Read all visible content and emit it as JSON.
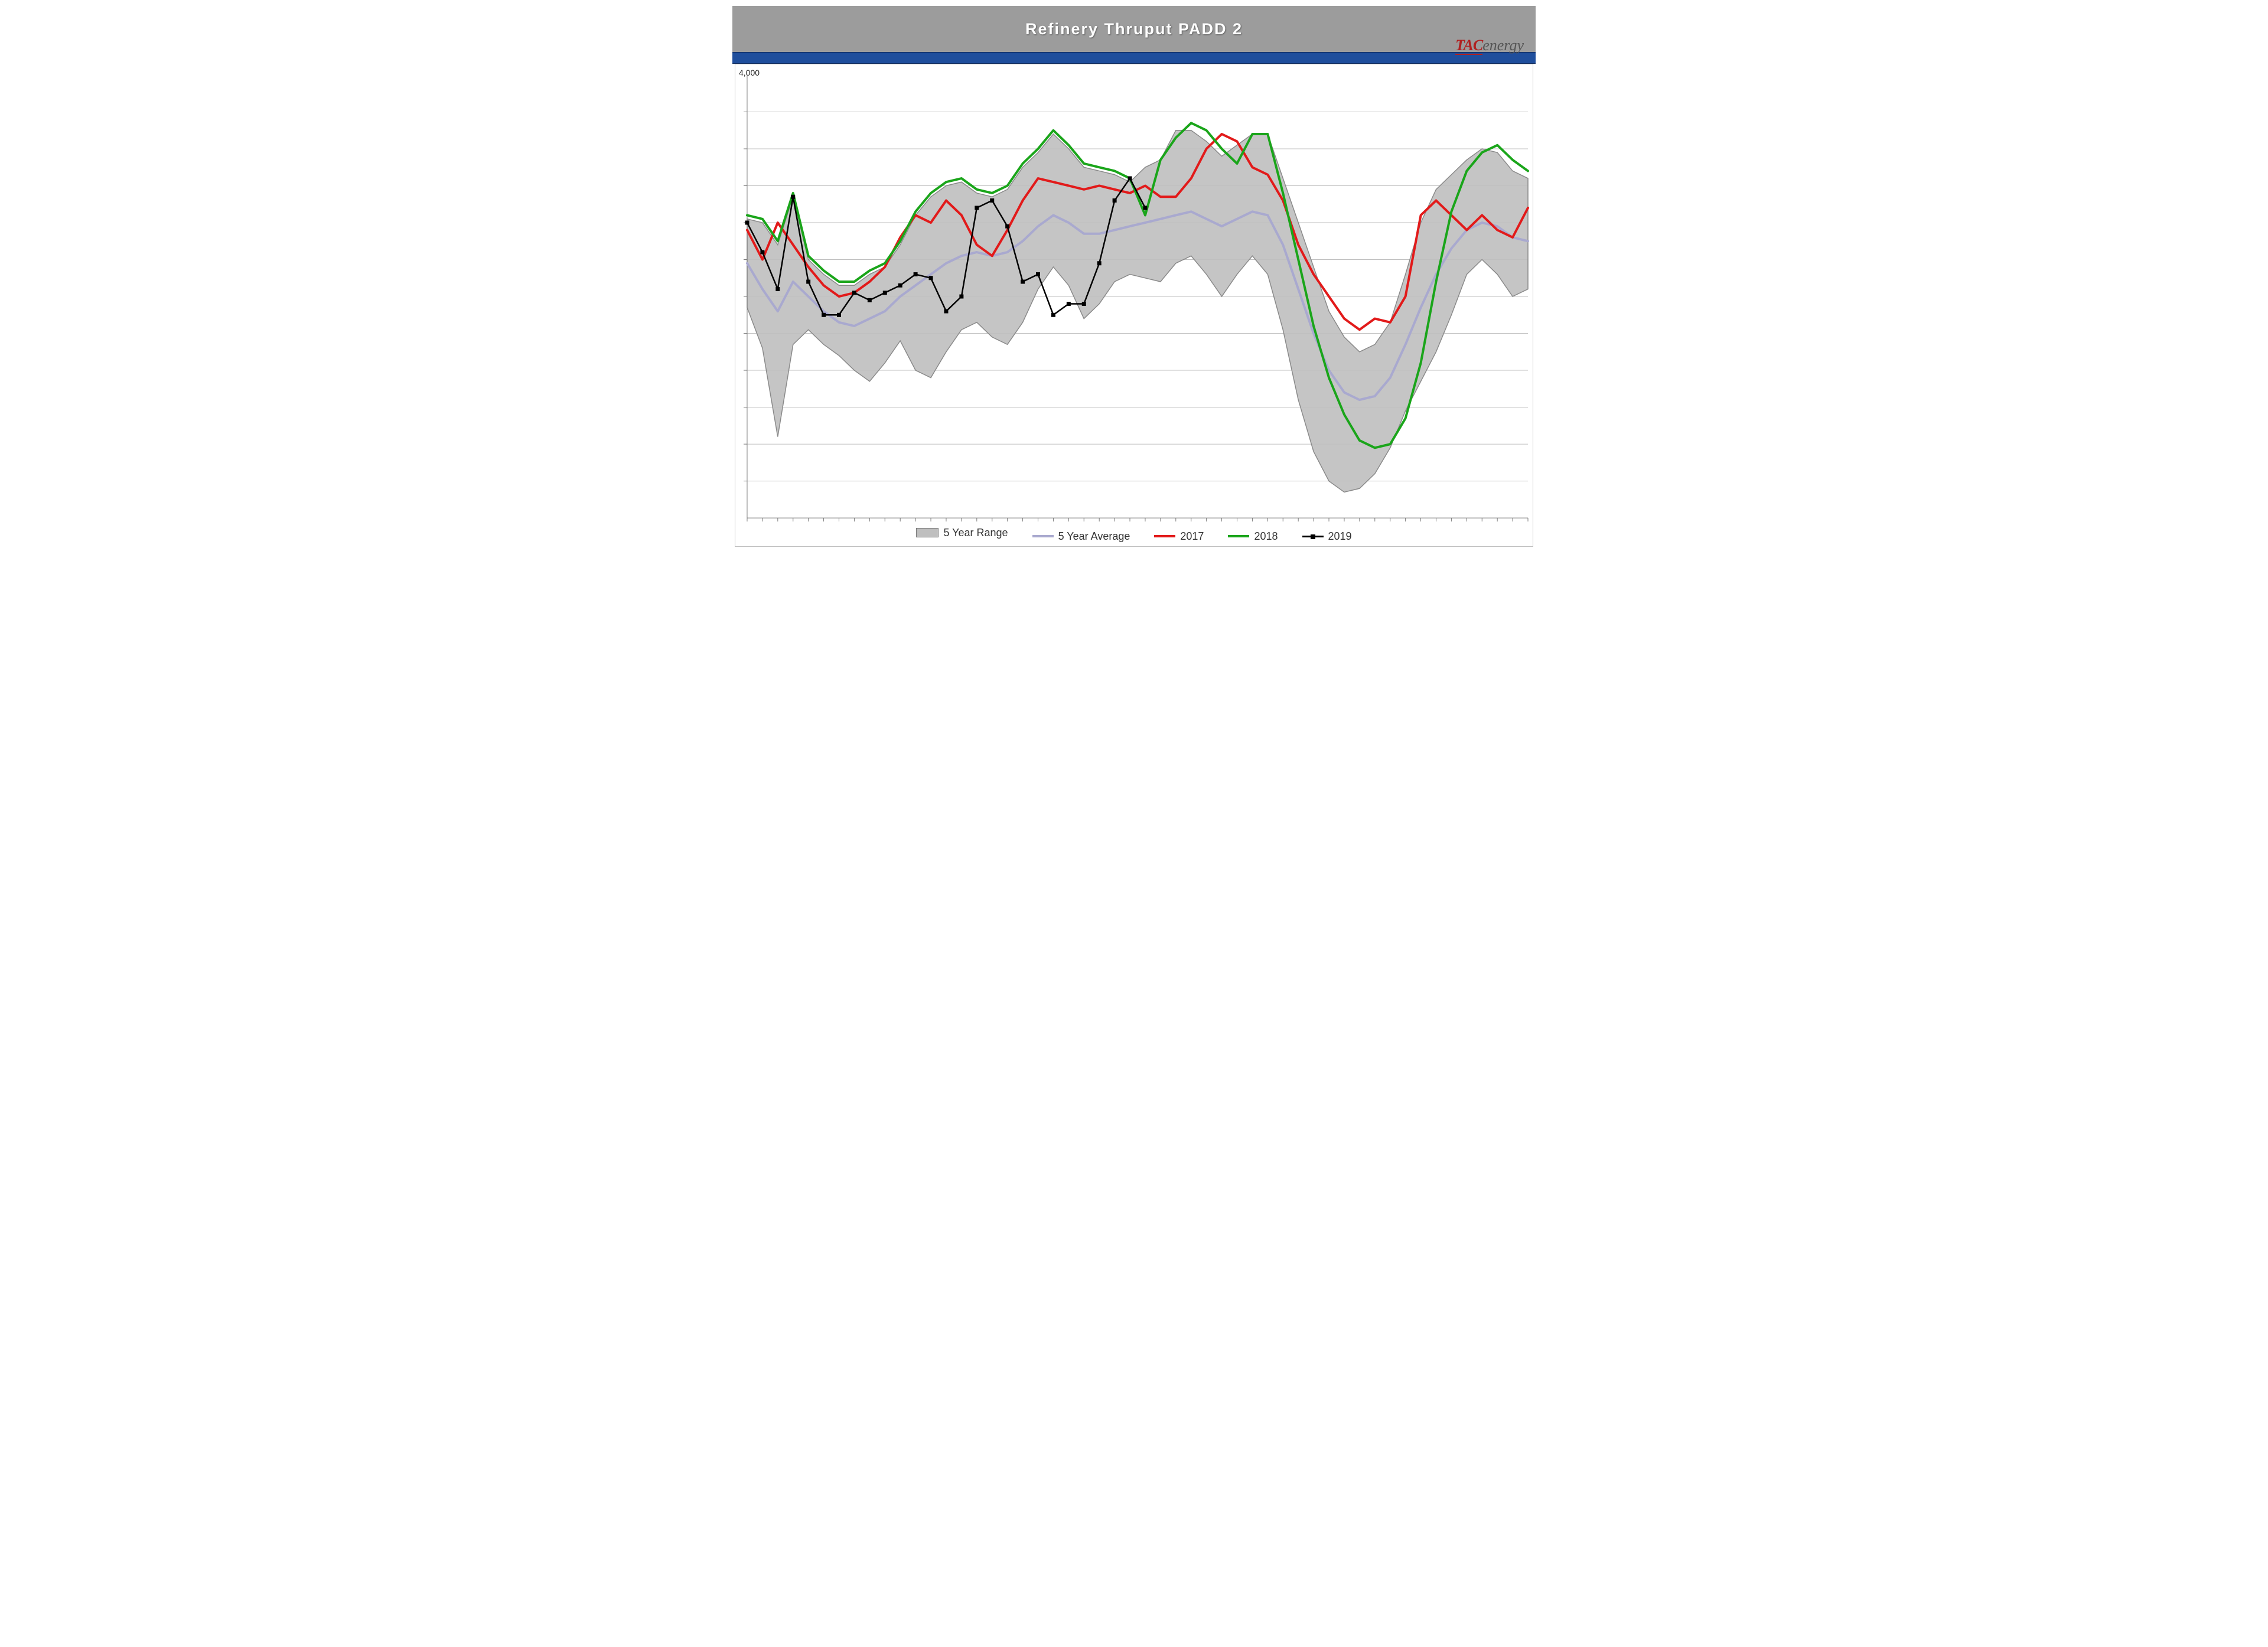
{
  "chart": {
    "type": "line-with-range-band",
    "title": "Refinery Thruput PADD 2",
    "brand": {
      "tac": "TAC",
      "energy": "energy"
    },
    "colors": {
      "title_bar_bg": "#9c9c9c",
      "title_text": "#ffffff",
      "blue_strip": "#1f4e9c",
      "plot_border": "#bfbfbf",
      "gridline": "#bfbfbf",
      "range_fill": "#bfbfbf",
      "range_stroke": "#8a8a8a",
      "avg_line": "#a9a9cf",
      "s2017": "#e21a1a",
      "s2018": "#1aa51a",
      "s2019": "#000000",
      "background": "#ffffff",
      "tick": "#7a7a7a"
    },
    "line_widths": {
      "range_outline": 1.5,
      "avg": 4,
      "s2017": 4,
      "s2018": 4,
      "s2019": 2.5
    },
    "marker": {
      "s2019_shape": "square",
      "s2019_size": 7
    },
    "y_axis": {
      "min": 2900,
      "max": 4100,
      "gridline_values": [
        3000,
        3100,
        3200,
        3300,
        3400,
        3500,
        3600,
        3700,
        3800,
        3900,
        4000
      ],
      "baseline_value": 2930,
      "top_ghost_label": "4,000"
    },
    "x_axis": {
      "week_count": 52,
      "tick_every": 1
    },
    "legend": {
      "range": "5 Year Range",
      "avg": "5 Year Average",
      "s2017": "2017",
      "s2018": "2018",
      "s2019": "2019"
    },
    "series": {
      "range_high": [
        3710,
        3700,
        3640,
        3770,
        3600,
        3560,
        3530,
        3530,
        3560,
        3580,
        3640,
        3720,
        3770,
        3800,
        3810,
        3780,
        3770,
        3790,
        3850,
        3890,
        3940,
        3900,
        3850,
        3840,
        3830,
        3810,
        3850,
        3870,
        3950,
        3950,
        3920,
        3880,
        3910,
        3940,
        3940,
        3820,
        3700,
        3580,
        3460,
        3390,
        3350,
        3370,
        3430,
        3560,
        3700,
        3790,
        3830,
        3870,
        3900,
        3890,
        3840,
        3820
      ],
      "range_low": [
        3470,
        3360,
        3120,
        3370,
        3410,
        3370,
        3340,
        3300,
        3270,
        3320,
        3380,
        3300,
        3280,
        3350,
        3410,
        3430,
        3390,
        3370,
        3430,
        3520,
        3580,
        3530,
        3440,
        3480,
        3540,
        3560,
        3550,
        3540,
        3590,
        3610,
        3560,
        3500,
        3560,
        3610,
        3560,
        3410,
        3220,
        3080,
        3000,
        2970,
        2980,
        3020,
        3090,
        3190,
        3270,
        3350,
        3450,
        3560,
        3600,
        3560,
        3500,
        3520
      ],
      "avg": [
        3590,
        3520,
        3460,
        3540,
        3500,
        3460,
        3430,
        3420,
        3440,
        3460,
        3500,
        3530,
        3560,
        3590,
        3610,
        3620,
        3610,
        3620,
        3650,
        3690,
        3720,
        3700,
        3670,
        3670,
        3680,
        3690,
        3700,
        3710,
        3720,
        3730,
        3710,
        3690,
        3710,
        3730,
        3720,
        3640,
        3520,
        3400,
        3300,
        3240,
        3220,
        3230,
        3280,
        3370,
        3470,
        3560,
        3630,
        3680,
        3700,
        3690,
        3660,
        3650
      ],
      "s2017": [
        3680,
        3600,
        3700,
        3640,
        3580,
        3530,
        3500,
        3510,
        3540,
        3580,
        3660,
        3720,
        3700,
        3760,
        3720,
        3640,
        3610,
        3680,
        3760,
        3820,
        3810,
        3800,
        3790,
        3800,
        3790,
        3780,
        3800,
        3770,
        3770,
        3820,
        3900,
        3940,
        3920,
        3850,
        3830,
        3760,
        3640,
        3560,
        3500,
        3440,
        3410,
        3440,
        3430,
        3500,
        3720,
        3760,
        3720,
        3680,
        3720,
        3680,
        3660,
        3740
      ],
      "s2018": [
        3720,
        3710,
        3650,
        3780,
        3610,
        3570,
        3540,
        3540,
        3570,
        3590,
        3650,
        3730,
        3780,
        3810,
        3820,
        3790,
        3780,
        3800,
        3860,
        3900,
        3950,
        3910,
        3860,
        3850,
        3840,
        3820,
        3720,
        3870,
        3930,
        3970,
        3950,
        3900,
        3860,
        3940,
        3940,
        3780,
        3600,
        3420,
        3280,
        3180,
        3110,
        3090,
        3100,
        3170,
        3320,
        3540,
        3730,
        3840,
        3890,
        3910,
        3870,
        3840
      ],
      "s2019": [
        3700,
        3620,
        3520,
        3770,
        3540,
        3450,
        3450,
        3510,
        3490,
        3510,
        3530,
        3560,
        3550,
        3460,
        3500,
        3740,
        3760,
        3690,
        3540,
        3560,
        3450,
        3480,
        3480,
        3590,
        3760,
        3820,
        3740
      ]
    }
  }
}
